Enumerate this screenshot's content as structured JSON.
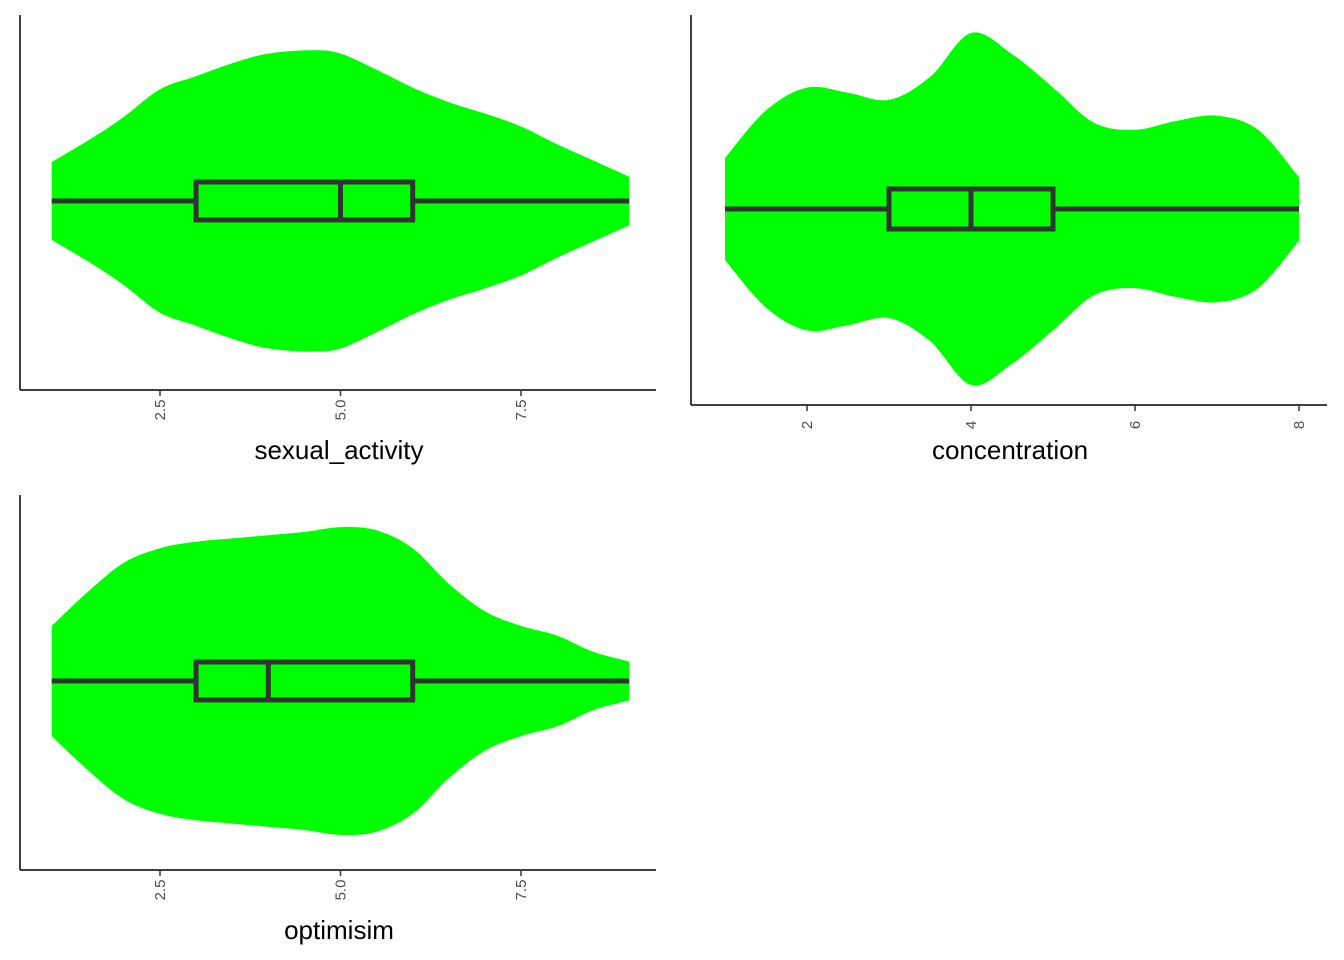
{
  "chart_data": [
    {
      "type": "violin",
      "xlabel": "sexual_activity",
      "xlim": [
        0.8,
        9.0
      ],
      "xticks": [
        2.5,
        5.0,
        7.5
      ],
      "tick_labels": [
        "2.5",
        "5.0",
        "7.5"
      ],
      "fill_color": "#00ff00",
      "box_color": "#333333",
      "density": {
        "x": [
          1.0,
          1.6,
          2.0,
          2.5,
          3.0,
          3.5,
          4.0,
          4.6,
          5.0,
          5.5,
          6.0,
          6.5,
          7.0,
          7.5,
          8.0,
          8.6,
          9.0
        ],
        "half_width": [
          0.24,
          0.4,
          0.52,
          0.69,
          0.77,
          0.85,
          0.91,
          0.93,
          0.91,
          0.81,
          0.7,
          0.61,
          0.54,
          0.46,
          0.35,
          0.23,
          0.15
        ]
      },
      "box": {
        "min": 1,
        "q1": 3,
        "median": 5,
        "q3": 6,
        "max": 9
      }
    },
    {
      "type": "violin",
      "xlabel": "concentration",
      "xlim": [
        0.8,
        8.0
      ],
      "xticks": [
        2,
        4,
        6,
        8
      ],
      "tick_labels": [
        "2",
        "4",
        "6",
        "8"
      ],
      "fill_color": "#00ff00",
      "box_color": "#333333",
      "density": {
        "x": [
          1.0,
          1.5,
          2.0,
          2.5,
          3.0,
          3.5,
          4.0,
          4.5,
          5.0,
          5.5,
          6.0,
          6.5,
          7.0,
          7.5,
          8.0
        ],
        "half_width": [
          0.29,
          0.56,
          0.69,
          0.66,
          0.62,
          0.75,
          1.0,
          0.88,
          0.69,
          0.49,
          0.45,
          0.5,
          0.53,
          0.45,
          0.18
        ]
      },
      "box": {
        "min": 1,
        "q1": 3,
        "median": 4,
        "q3": 5,
        "max": 8
      }
    },
    {
      "type": "violin",
      "xlabel": "optimisim",
      "xlim": [
        0.8,
        9.0
      ],
      "xticks": [
        2.5,
        5.0,
        7.5
      ],
      "tick_labels": [
        "2.5",
        "5.0",
        "7.5"
      ],
      "fill_color": "#00ff00",
      "box_color": "#333333",
      "density": {
        "x": [
          1.0,
          1.5,
          2.0,
          2.5,
          3.0,
          3.5,
          4.0,
          4.5,
          5.0,
          5.5,
          6.0,
          6.5,
          7.0,
          7.5,
          8.0,
          8.5,
          9.0
        ],
        "half_width": [
          0.34,
          0.55,
          0.73,
          0.82,
          0.86,
          0.88,
          0.9,
          0.92,
          0.95,
          0.93,
          0.82,
          0.6,
          0.43,
          0.34,
          0.28,
          0.18,
          0.12
        ]
      },
      "box": {
        "min": 1,
        "q1": 3,
        "median": 4,
        "q3": 6,
        "max": 9
      }
    }
  ]
}
